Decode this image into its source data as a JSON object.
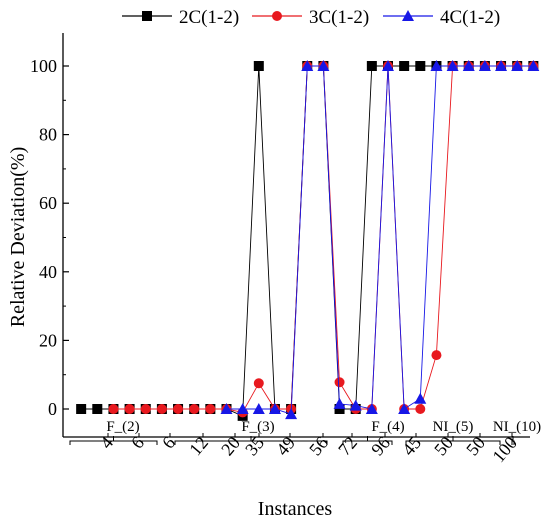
{
  "chart_data": {
    "type": "line",
    "title": "",
    "xlabel": "Instances",
    "ylabel": "Relative Deviation(%)",
    "ylim": [
      -8,
      110
    ],
    "yticks": [
      0,
      20,
      40,
      60,
      80,
      100
    ],
    "grid": false,
    "legend": "top-center",
    "x_ticks": [
      "4",
      "6",
      "6",
      "12",
      "20",
      "35",
      "49",
      "56",
      "72",
      "96",
      "45",
      "50",
      "50",
      "100"
    ],
    "groups": [
      "F_(2)",
      "F_(3)",
      "F_(4)",
      "NI_(5)",
      "NI_(10)"
    ],
    "series": [
      {
        "name": "2C(1-2)",
        "color": "#000000",
        "marker": "square",
        "points": [
          [
            1,
            0
          ],
          [
            2,
            0
          ],
          [
            3,
            0
          ],
          [
            4,
            0
          ],
          [
            5,
            0
          ],
          [
            6,
            0
          ],
          [
            7,
            0
          ],
          [
            8,
            0
          ],
          [
            9,
            0
          ],
          [
            10,
            0
          ],
          [
            11,
            -2
          ],
          [
            12,
            100
          ],
          [
            13,
            0
          ],
          [
            14,
            0
          ],
          [
            15,
            100
          ],
          [
            16,
            100
          ],
          [
            17,
            0
          ],
          [
            18,
            0
          ],
          [
            19,
            100
          ],
          [
            20,
            100
          ],
          [
            21,
            100
          ],
          [
            22,
            100
          ],
          [
            23,
            100
          ],
          [
            24,
            100
          ],
          [
            25,
            100
          ],
          [
            26,
            100
          ],
          [
            27,
            100
          ],
          [
            28,
            100
          ],
          [
            29,
            100
          ]
        ]
      },
      {
        "name": "3C(1-2)",
        "color": "#e8191f",
        "marker": "circle",
        "points": [
          [
            3,
            0
          ],
          [
            4,
            0
          ],
          [
            5,
            0
          ],
          [
            6,
            0
          ],
          [
            7,
            0
          ],
          [
            8,
            0
          ],
          [
            9,
            0
          ],
          [
            10,
            0
          ],
          [
            11,
            -1
          ],
          [
            12,
            7.5
          ],
          [
            13,
            0
          ],
          [
            14,
            0
          ],
          [
            15,
            100
          ],
          [
            16,
            100
          ],
          [
            17,
            7.8
          ],
          [
            18,
            0
          ],
          [
            19,
            0
          ],
          [
            20,
            100
          ],
          [
            21,
            0
          ],
          [
            22,
            0
          ],
          [
            23,
            15.7
          ],
          [
            24,
            100
          ],
          [
            25,
            100
          ],
          [
            26,
            100
          ],
          [
            27,
            100
          ],
          [
            28,
            100
          ],
          [
            29,
            100
          ]
        ]
      },
      {
        "name": "4C(1-2)",
        "color": "#1717e6",
        "marker": "triangle",
        "points": [
          [
            10,
            0
          ],
          [
            11,
            0
          ],
          [
            12,
            0
          ],
          [
            13,
            0
          ],
          [
            14,
            -1.5
          ],
          [
            15,
            100
          ],
          [
            16,
            100
          ],
          [
            17,
            1.5
          ],
          [
            18,
            1
          ],
          [
            19,
            0
          ],
          [
            20,
            100
          ],
          [
            21,
            0
          ],
          [
            22,
            3
          ],
          [
            23,
            100
          ],
          [
            24,
            100
          ],
          [
            25,
            100
          ],
          [
            26,
            100
          ],
          [
            27,
            100
          ],
          [
            28,
            100
          ],
          [
            29,
            100
          ]
        ]
      }
    ]
  }
}
